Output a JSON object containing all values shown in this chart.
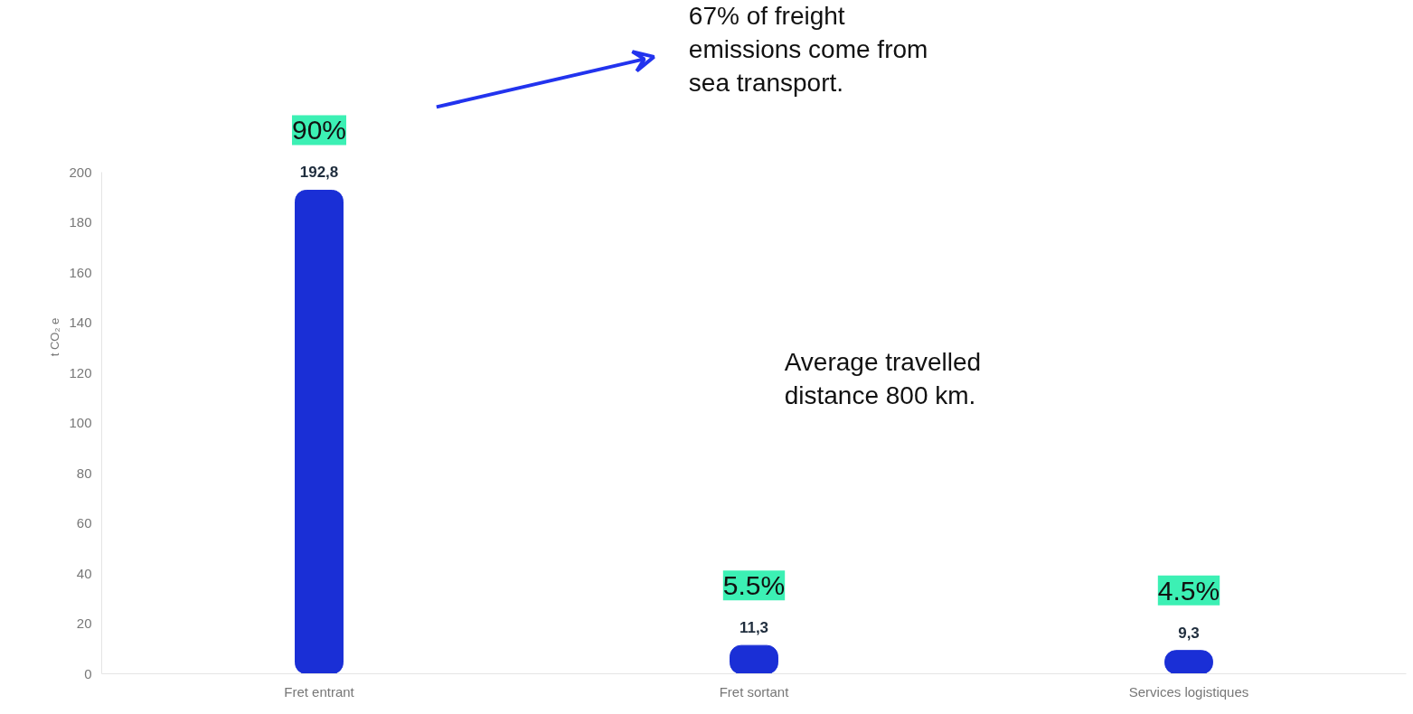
{
  "chart_data": {
    "type": "bar",
    "ylabel": "t CO₂ e",
    "categories": [
      "Fret entrant",
      "Fret sortant",
      "Services logistiques"
    ],
    "values": [
      192.8,
      11.3,
      9.3
    ],
    "value_labels": [
      "192,8",
      "11,3",
      "9,3"
    ],
    "color": "#1a2fd6",
    "ylim": [
      0,
      200
    ],
    "yticks": [
      0,
      20,
      40,
      60,
      80,
      100,
      120,
      140,
      160,
      180,
      200
    ],
    "annotations": [
      {
        "text": "90%",
        "x": "Fret entrant",
        "y": 192.8
      },
      {
        "text": "5.5%",
        "x": "Fret sortant",
        "y": 11.3
      },
      {
        "text": "4.5%",
        "x": "Services logistiques",
        "y": 9.3
      },
      "67% of freight emissions come from sea transport.",
      "Average travelled distance 800 km."
    ]
  }
}
